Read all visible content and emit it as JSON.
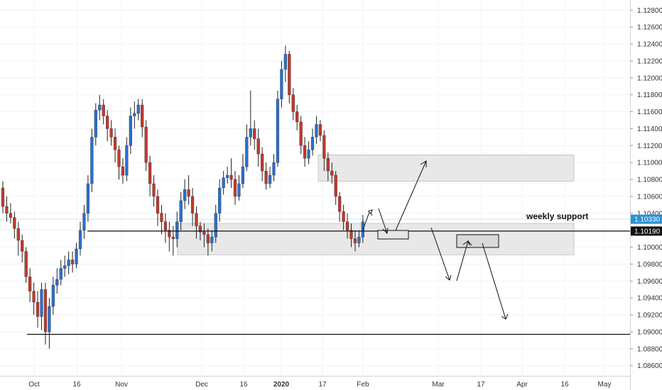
{
  "chart_data": {
    "type": "candlestick",
    "symbol_view": "EURUSD daily",
    "y_range": [
      1.0848,
      1.1292
    ],
    "y_ticks": [
      "1.12800",
      "1.12600",
      "1.12400",
      "1.12200",
      "1.12000",
      "1.11800",
      "1.11600",
      "1.11400",
      "1.11200",
      "1.11000",
      "1.10800",
      "1.10600",
      "1.10400",
      "1.10200",
      "1.10000",
      "1.09800",
      "1.09600",
      "1.09400",
      "1.09200",
      "1.09000",
      "1.08800",
      "1.08600"
    ],
    "x_ticks": [
      {
        "label": "Oct",
        "bold": false
      },
      {
        "label": "16",
        "bold": false
      },
      {
        "label": "Nov",
        "bold": false
      },
      {
        "label": "Dec",
        "bold": false
      },
      {
        "label": "16",
        "bold": false
      },
      {
        "label": "2020",
        "bold": true
      },
      {
        "label": "17",
        "bold": false
      },
      {
        "label": "Feb",
        "bold": false
      },
      {
        "label": "Mar",
        "bold": false
      },
      {
        "label": "17",
        "bold": false
      },
      {
        "label": "Apr",
        "bold": false
      },
      {
        "label": "16",
        "bold": false
      },
      {
        "label": "May",
        "bold": false
      }
    ],
    "price_tags": [
      {
        "label": "1.10330",
        "value": 1.1033,
        "color": "#2a8fd6"
      },
      {
        "label": "1.10190",
        "value": 1.1019,
        "color": "#111111"
      }
    ],
    "colors": {
      "up": "#2a6fd1",
      "down": "#c0392b",
      "wick": "#222222",
      "grid": "#f0f3fa",
      "zone": "#e8e8e8",
      "zone_border": "#bdbdbd",
      "line": "#111111",
      "current_price_line": "#8fd0e8"
    },
    "annotations": {
      "support_label": "weekly support",
      "support_level": 1.1019,
      "lower_level": 1.0897,
      "upper_zone": [
        1.1078,
        1.1109
      ],
      "lower_zone": [
        1.0991,
        1.1028
      ]
    },
    "candles": [
      [
        1.107,
        1.1048,
        1.1078,
        1.104
      ],
      [
        1.1048,
        1.104,
        1.106,
        1.103
      ],
      [
        1.104,
        1.1035,
        1.1052,
        1.1028
      ],
      [
        1.1035,
        1.1022,
        1.1042,
        1.101
      ],
      [
        1.1022,
        1.1008,
        1.103,
        1.099
      ],
      [
        1.1008,
        1.0995,
        1.1015,
        1.0982
      ],
      [
        1.0995,
        1.0965,
        1.1,
        1.0958
      ],
      [
        1.0965,
        1.0948,
        1.0975,
        1.0935
      ],
      [
        1.0948,
        1.0935,
        1.0958,
        1.092
      ],
      [
        1.0935,
        1.0918,
        1.0948,
        1.0905
      ],
      [
        1.0918,
        1.095,
        1.0958,
        1.0902
      ],
      [
        1.095,
        1.09,
        1.0958,
        1.0885
      ],
      [
        1.09,
        1.093,
        1.094,
        1.088
      ],
      [
        1.093,
        1.0955,
        1.0965,
        1.092
      ],
      [
        1.0955,
        1.0962,
        1.0975,
        1.0945
      ],
      [
        1.0962,
        1.0975,
        1.0985,
        1.0955
      ],
      [
        1.0975,
        1.0978,
        1.099,
        1.0965
      ],
      [
        1.0978,
        1.0985,
        1.0995,
        1.0968
      ],
      [
        1.0985,
        1.098,
        1.0995,
        1.097
      ],
      [
        1.098,
        1.0998,
        1.1005,
        1.0975
      ],
      [
        1.0998,
        1.102,
        1.103,
        1.099
      ],
      [
        1.102,
        1.104,
        1.105,
        1.101
      ],
      [
        1.104,
        1.1075,
        1.1085,
        1.103
      ],
      [
        1.1075,
        1.113,
        1.114,
        1.1065
      ],
      [
        1.113,
        1.1162,
        1.117,
        1.112
      ],
      [
        1.1162,
        1.1168,
        1.118,
        1.115
      ],
      [
        1.1168,
        1.1155,
        1.1175,
        1.1145
      ],
      [
        1.1155,
        1.114,
        1.1162,
        1.1125
      ],
      [
        1.114,
        1.113,
        1.115,
        1.112
      ],
      [
        1.113,
        1.1115,
        1.114,
        1.11
      ],
      [
        1.1115,
        1.1095,
        1.112,
        1.108
      ],
      [
        1.1095,
        1.1085,
        1.1105,
        1.1075
      ],
      [
        1.1085,
        1.112,
        1.113,
        1.1078
      ],
      [
        1.112,
        1.1155,
        1.1165,
        1.111
      ],
      [
        1.1155,
        1.1158,
        1.1172,
        1.114
      ],
      [
        1.1158,
        1.1168,
        1.1175,
        1.115
      ],
      [
        1.1168,
        1.1142,
        1.1175,
        1.113
      ],
      [
        1.1142,
        1.11,
        1.115,
        1.109
      ],
      [
        1.11,
        1.1075,
        1.1108,
        1.106
      ],
      [
        1.1075,
        1.106,
        1.1085,
        1.1048
      ],
      [
        1.106,
        1.104,
        1.1068,
        1.1025
      ],
      [
        1.104,
        1.103,
        1.105,
        1.1015
      ],
      [
        1.103,
        1.102,
        1.104,
        1.1005
      ],
      [
        1.102,
        1.1012,
        1.103,
        1.0995
      ],
      [
        1.1012,
        1.101,
        1.1025,
        1.099
      ],
      [
        1.101,
        1.103,
        1.1042,
        1.1
      ],
      [
        1.103,
        1.1055,
        1.1065,
        1.102
      ],
      [
        1.1055,
        1.1068,
        1.108,
        1.1045
      ],
      [
        1.1068,
        1.106,
        1.1085,
        1.105
      ],
      [
        1.106,
        1.104,
        1.107,
        1.1025
      ],
      [
        1.104,
        1.1025,
        1.1048,
        1.101
      ],
      [
        1.1025,
        1.1018,
        1.103,
        1.1008
      ],
      [
        1.1018,
        1.1015,
        1.1028,
        1.1
      ],
      [
        1.1015,
        1.1005,
        1.1022,
        1.099
      ],
      [
        1.1005,
        1.1012,
        1.102,
        1.0995
      ],
      [
        1.1012,
        1.104,
        1.105,
        1.1005
      ],
      [
        1.104,
        1.107,
        1.108,
        1.103
      ],
      [
        1.107,
        1.1082,
        1.109,
        1.1062
      ],
      [
        1.1082,
        1.1085,
        1.1095,
        1.1075
      ],
      [
        1.1085,
        1.108,
        1.1105,
        1.107
      ],
      [
        1.108,
        1.106,
        1.109,
        1.105
      ],
      [
        1.106,
        1.1075,
        1.1085,
        1.1055
      ],
      [
        1.1075,
        1.1095,
        1.111,
        1.107
      ],
      [
        1.1095,
        1.113,
        1.1145,
        1.109
      ],
      [
        1.113,
        1.114,
        1.1185,
        1.112
      ],
      [
        1.114,
        1.1128,
        1.115,
        1.1115
      ],
      [
        1.1128,
        1.111,
        1.114,
        1.1095
      ],
      [
        1.111,
        1.109,
        1.1118,
        1.1078
      ],
      [
        1.109,
        1.1075,
        1.11,
        1.1068
      ],
      [
        1.1075,
        1.1085,
        1.1095,
        1.107
      ],
      [
        1.1085,
        1.11,
        1.111,
        1.1078
      ],
      [
        1.11,
        1.1175,
        1.1185,
        1.1095
      ],
      [
        1.1175,
        1.121,
        1.122,
        1.1165
      ],
      [
        1.121,
        1.1228,
        1.1238,
        1.1195
      ],
      [
        1.1228,
        1.118,
        1.1232,
        1.117
      ],
      [
        1.118,
        1.116,
        1.1188,
        1.115
      ],
      [
        1.116,
        1.1148,
        1.1168,
        1.1138
      ],
      [
        1.1148,
        1.112,
        1.1155,
        1.111
      ],
      [
        1.112,
        1.1105,
        1.113,
        1.1095
      ],
      [
        1.1105,
        1.1115,
        1.1125,
        1.1098
      ],
      [
        1.1115,
        1.113,
        1.114,
        1.1108
      ],
      [
        1.113,
        1.1145,
        1.1155,
        1.1122
      ],
      [
        1.1145,
        1.1132,
        1.115,
        1.1125
      ],
      [
        1.1132,
        1.1105,
        1.1138,
        1.109
      ],
      [
        1.1105,
        1.109,
        1.1112,
        1.1078
      ],
      [
        1.109,
        1.1085,
        1.11,
        1.1075
      ],
      [
        1.1085,
        1.106,
        1.109,
        1.105
      ],
      [
        1.106,
        1.1042,
        1.1065,
        1.103
      ],
      [
        1.1042,
        1.103,
        1.105,
        1.102
      ],
      [
        1.103,
        1.102,
        1.104,
        1.101
      ],
      [
        1.102,
        1.101,
        1.1028,
        1.1
      ],
      [
        1.101,
        1.1005,
        1.102,
        1.0995
      ],
      [
        1.1005,
        1.1012,
        1.102,
        1.1
      ],
      [
        1.1012,
        1.103,
        1.1038,
        1.1005
      ]
    ]
  }
}
